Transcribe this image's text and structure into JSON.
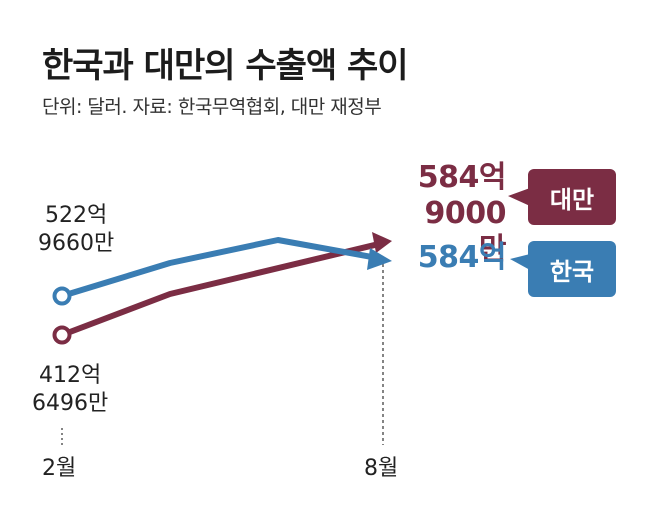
{
  "title": "한국과 대만의 수출액 추이",
  "subtitle": "단위: 달러. 자료: 한국무역협회, 대만 재정부",
  "colors": {
    "taiwan": "#7b2d44",
    "korea": "#3a7db3"
  },
  "chart_data": {
    "type": "line",
    "x_labels": [
      "2월",
      "8월"
    ],
    "series": [
      {
        "name": "대만",
        "start": [
          "412억",
          "6496만"
        ],
        "end": [
          "584억",
          "9000만"
        ]
      },
      {
        "name": "한국",
        "start": [
          "522억",
          "9660만"
        ],
        "end": [
          "584억"
        ]
      }
    ]
  }
}
